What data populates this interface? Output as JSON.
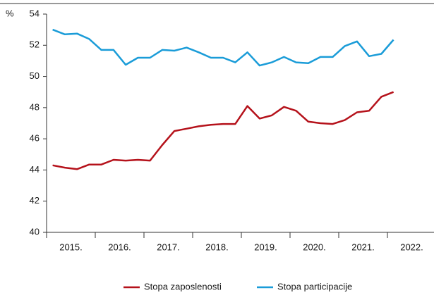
{
  "chart_data": {
    "type": "line",
    "y_unit": "%",
    "categories": [
      null,
      null,
      null,
      null,
      null,
      null,
      null,
      null,
      null,
      null,
      null,
      null,
      null,
      null,
      null,
      null,
      null,
      null,
      null,
      null,
      null,
      null,
      null,
      null,
      null,
      null,
      null,
      null,
      null
    ],
    "series": [
      {
        "name": "Stopa zaposlenosti",
        "color": "#b5121b",
        "values": [
          44.3,
          44.15,
          44.05,
          44.35,
          44.35,
          44.65,
          44.6,
          44.65,
          44.6,
          45.6,
          46.5,
          46.65,
          46.8,
          46.9,
          46.95,
          46.95,
          48.1,
          47.3,
          47.5,
          48.05,
          47.8,
          47.1,
          47.0,
          46.95,
          47.2,
          47.7,
          47.8,
          48.7,
          49.0
        ]
      },
      {
        "name": "Stopa participacije",
        "color": "#1a9cd8",
        "values": [
          53.0,
          52.7,
          52.75,
          52.4,
          51.7,
          51.7,
          50.75,
          51.2,
          51.2,
          51.7,
          51.65,
          51.85,
          51.55,
          51.2,
          51.2,
          50.9,
          51.55,
          50.7,
          50.9,
          51.25,
          50.9,
          50.85,
          51.25,
          51.25,
          51.95,
          52.25,
          51.3,
          51.45,
          52.35
        ]
      }
    ],
    "xlim": [
      2015,
      2023
    ],
    "xticks": [
      {
        "value": 2015,
        "label": "2015."
      },
      {
        "value": 2016,
        "label": "2016."
      },
      {
        "value": 2017,
        "label": "2017."
      },
      {
        "value": 2018,
        "label": "2018."
      },
      {
        "value": 2019,
        "label": "2019."
      },
      {
        "value": 2020,
        "label": "2020."
      },
      {
        "value": 2021,
        "label": "2021."
      },
      {
        "value": 2022,
        "label": "2022."
      }
    ],
    "ylim": [
      40,
      54
    ],
    "yticks": [
      40,
      42,
      44,
      46,
      48,
      50,
      52,
      54
    ],
    "grid": false,
    "legend": "bottom"
  }
}
